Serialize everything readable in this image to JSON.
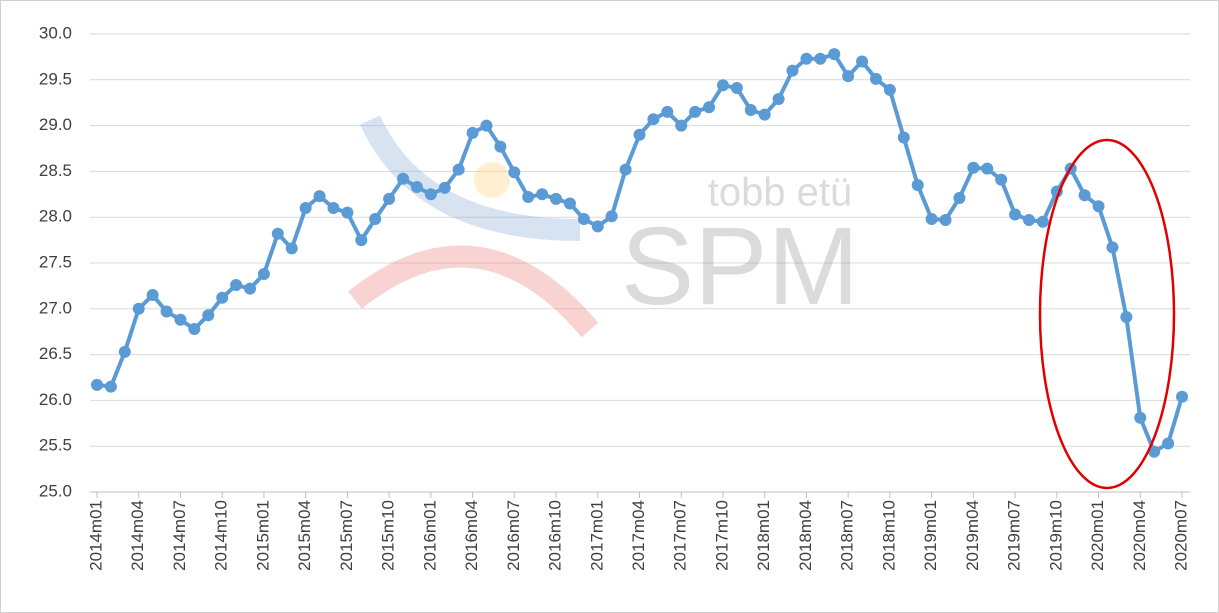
{
  "chart_data": {
    "type": "line",
    "categories": [
      "2014m01",
      null,
      null,
      "2014m04",
      null,
      null,
      "2014m07",
      null,
      null,
      "2014m10",
      null,
      null,
      "2015m01",
      null,
      null,
      "2015m04",
      null,
      null,
      "2015m07",
      null,
      null,
      "2015m10",
      null,
      null,
      "2016m01",
      null,
      null,
      "2016m04",
      null,
      null,
      "2016m07",
      null,
      null,
      "2016m10",
      null,
      null,
      "2017m01",
      null,
      null,
      "2017m04",
      null,
      null,
      "2017m07",
      null,
      null,
      "2017m10",
      null,
      null,
      "2018m01",
      null,
      null,
      "2018m04",
      null,
      null,
      "2018m07",
      null,
      null,
      "2018m10",
      null,
      null,
      "2019m01",
      null,
      null,
      "2019m04",
      null,
      null,
      "2019m07",
      null,
      null,
      "2019m10",
      null,
      null,
      "2020m01",
      null,
      null,
      "2020m04",
      null,
      null,
      "2020m07"
    ],
    "values": [
      26.17,
      26.15,
      26.53,
      27.0,
      27.15,
      26.97,
      26.88,
      26.78,
      26.93,
      27.12,
      27.26,
      27.22,
      27.38,
      27.82,
      27.66,
      28.1,
      28.23,
      28.1,
      28.05,
      27.75,
      27.98,
      28.2,
      28.42,
      28.33,
      28.25,
      28.32,
      28.52,
      28.92,
      29.0,
      28.77,
      28.49,
      28.22,
      28.25,
      28.2,
      28.15,
      27.98,
      27.9,
      28.01,
      28.52,
      28.9,
      29.07,
      29.15,
      29.0,
      29.15,
      29.2,
      29.44,
      29.41,
      29.17,
      29.12,
      29.29,
      29.6,
      29.73,
      29.73,
      29.78,
      29.54,
      29.7,
      29.51,
      29.39,
      28.87,
      28.35,
      27.98,
      27.97,
      28.21,
      28.54,
      28.53,
      28.41,
      28.03,
      27.97,
      27.95,
      28.28,
      28.53,
      28.24,
      28.12,
      27.67,
      26.91,
      25.81,
      25.44,
      25.53,
      26.04
    ],
    "color": "#5b9bd5",
    "ylim": [
      25,
      30
    ],
    "yticks": [
      {
        "value": 25,
        "label": "25.0"
      },
      {
        "value": 25.5,
        "label": "25.5"
      },
      {
        "value": 26,
        "label": "26.0"
      },
      {
        "value": 26.5,
        "label": "26.5"
      },
      {
        "value": 27,
        "label": "27.0"
      },
      {
        "value": 27.5,
        "label": "27.5"
      },
      {
        "value": 28,
        "label": "28.0"
      },
      {
        "value": 28.5,
        "label": "28.5"
      },
      {
        "value": 29,
        "label": "29.0"
      },
      {
        "value": 29.5,
        "label": "29.5"
      },
      {
        "value": 30,
        "label": "30.0"
      }
    ],
    "grid": true,
    "watermark": {
      "small": "tobb etü",
      "large": "SPM"
    }
  }
}
